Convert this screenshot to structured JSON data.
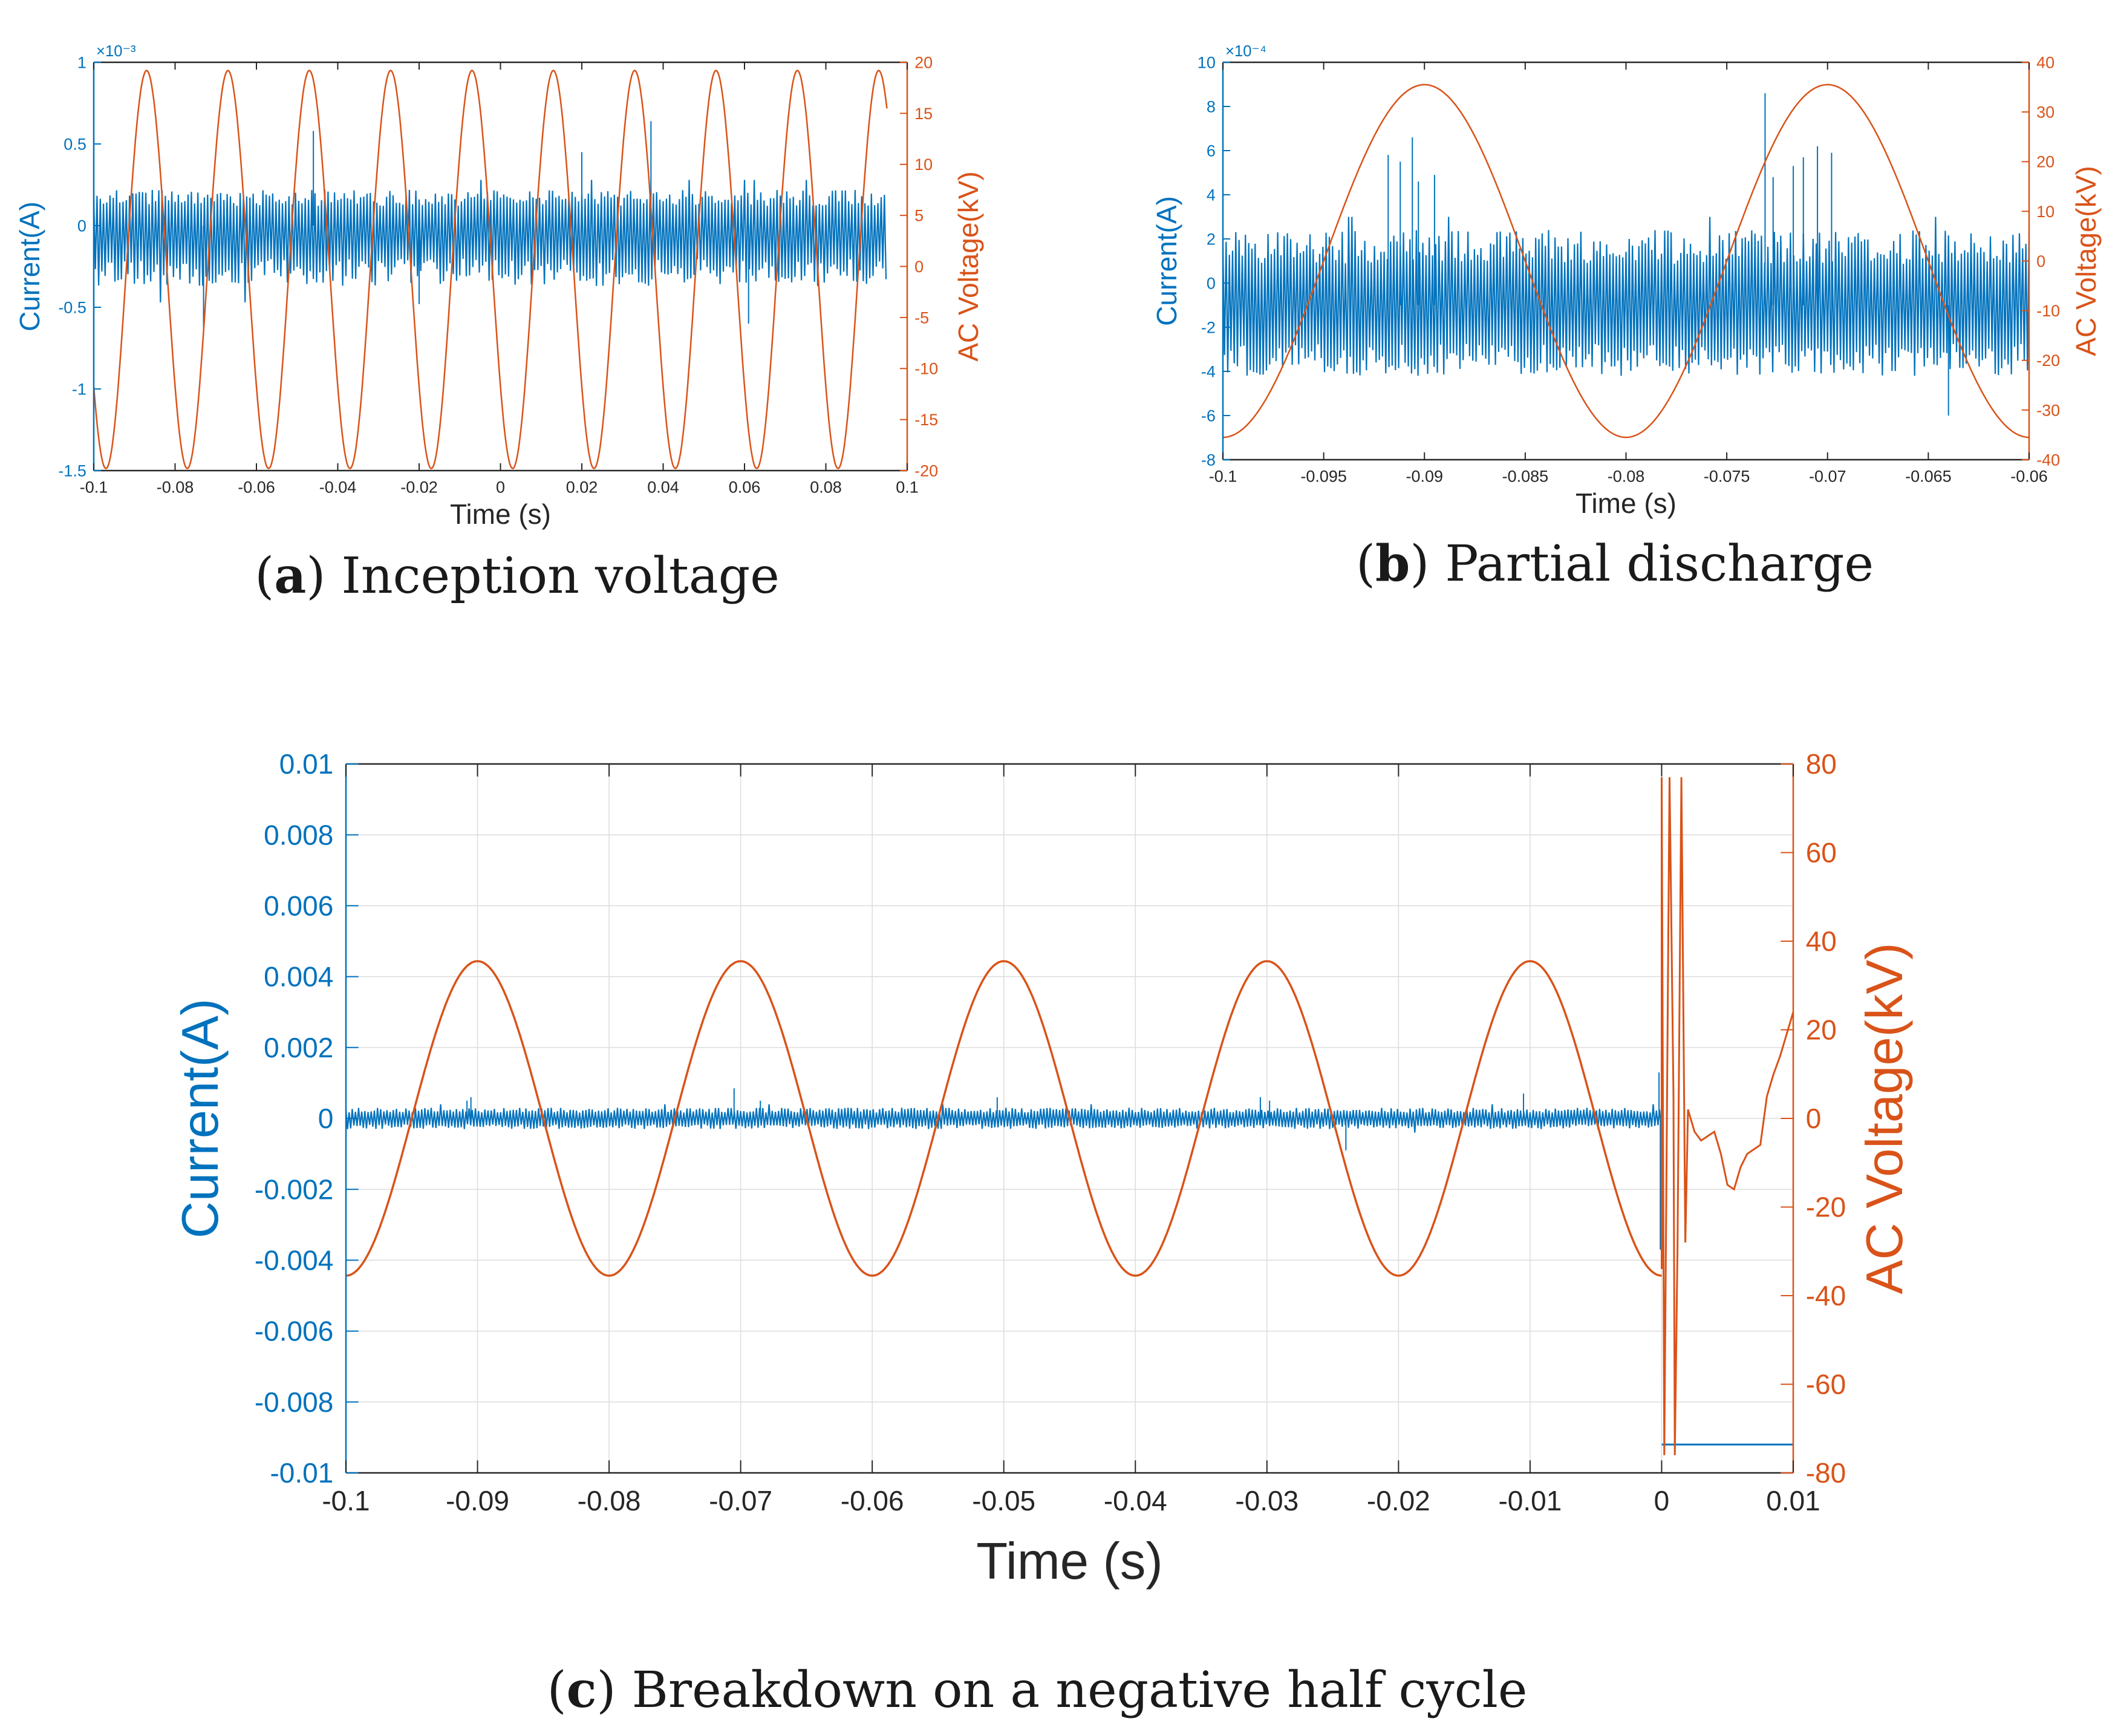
{
  "figure": {
    "captions": [
      {
        "letter": "a",
        "text": "Inception voltage"
      },
      {
        "letter": "b",
        "text": "Partial discharge"
      },
      {
        "letter": "c",
        "text": "Breakdown on a negative half cycle"
      }
    ]
  },
  "colors": {
    "current": "#0072BD",
    "voltage": "#D95319",
    "axis": "#262626",
    "grid": "#DCDCDC"
  },
  "chart_data": [
    {
      "id": "a",
      "type": "line",
      "title": "Inception voltage",
      "xlabel": "Time (s)",
      "ylabel_left": "Current(A)",
      "ylabel_right": "AC Voltage(kV)",
      "left_exponent": "×10⁻³",
      "grid": false,
      "xlim": [
        -0.1,
        0.1
      ],
      "ylim_left": [
        -1.5,
        1
      ],
      "ylim_right": [
        -20,
        20
      ],
      "xticks": [
        -0.1,
        -0.08,
        -0.06,
        -0.04,
        -0.02,
        0,
        0.02,
        0.04,
        0.06,
        0.08,
        0.1
      ],
      "xtick_labels": [
        "-0.1",
        "-0.08",
        "-0.06",
        "-0.04",
        "-0.02",
        "0",
        "0.02",
        "0.04",
        "0.06",
        "0.08",
        "0.1"
      ],
      "yticks_left": [
        -1.5,
        -1,
        -0.5,
        0,
        0.5,
        1
      ],
      "ytick_labels_left": [
        "-1.5",
        "-1",
        "-0.5",
        "0",
        "0.5",
        "1"
      ],
      "yticks_right": [
        -20,
        -15,
        -10,
        -5,
        0,
        5,
        10,
        15,
        20
      ],
      "ytick_labels_right": [
        "-20",
        "-15",
        "-10",
        "-5",
        "0",
        "5",
        "10",
        "15",
        "20"
      ],
      "series": [
        {
          "name": "Current(A)",
          "axis": "left",
          "kind": "noise",
          "x_range": [
            -0.1,
            0.095
          ],
          "mean": 0.0,
          "envelope": [
            -0.37,
            0.22
          ],
          "outer_spikes": [
            -0.47,
            0.28
          ],
          "spikes": [
            [
              -0.046,
              0.58
            ],
            [
              -0.073,
              -0.62
            ],
            [
              0.037,
              0.64
            ],
            [
              0.061,
              -0.6
            ],
            [
              0.02,
              0.45
            ],
            [
              -0.02,
              -0.48
            ]
          ]
        },
        {
          "name": "AC Voltage(kV)",
          "axis": "right",
          "kind": "sine",
          "x_range": [
            -0.1,
            0.095
          ],
          "amplitude": 19.5,
          "frequency_hz": 50,
          "peak_time": -0.087,
          "offset": -0.3
        }
      ]
    },
    {
      "id": "b",
      "type": "line",
      "title": "Partial discharge",
      "xlabel": "Time (s)",
      "ylabel_left": "Current(A)",
      "ylabel_right": "AC Voltage(kV)",
      "left_exponent": "×10⁻⁴",
      "grid": false,
      "xlim": [
        -0.1,
        -0.06
      ],
      "ylim_left": [
        -8,
        10
      ],
      "ylim_right": [
        -40,
        40
      ],
      "xticks": [
        -0.1,
        -0.095,
        -0.09,
        -0.085,
        -0.08,
        -0.075,
        -0.07,
        -0.065,
        -0.06
      ],
      "xtick_labels": [
        "-0.1",
        "-0.095",
        "-0.09",
        "-0.085",
        "-0.08",
        "-0.075",
        "-0.07",
        "-0.065",
        "-0.06"
      ],
      "yticks_left": [
        -8,
        -6,
        -4,
        -2,
        0,
        2,
        4,
        6,
        8,
        10
      ],
      "ytick_labels_left": [
        "-8",
        "-6",
        "-4",
        "-2",
        "0",
        "2",
        "4",
        "6",
        "8",
        "10"
      ],
      "yticks_right": [
        -40,
        -30,
        -20,
        -10,
        0,
        10,
        20,
        30,
        40
      ],
      "ytick_labels_right": [
        "-40",
        "-30",
        "-20",
        "-10",
        "0",
        "10",
        "20",
        "30",
        "40"
      ],
      "series": [
        {
          "name": "Current(A)",
          "axis": "left",
          "kind": "noise",
          "x_range": [
            -0.1,
            -0.06
          ],
          "mean": -1.0,
          "envelope": [
            -4.2,
            2.4
          ],
          "outer_spikes": [
            -5.2,
            3.0
          ],
          "spikes": [
            [
              -0.0906,
              6.6
            ],
            [
              -0.0912,
              5.5
            ],
            [
              -0.0918,
              5.8
            ],
            [
              -0.0895,
              4.9
            ],
            [
              -0.0903,
              4.6
            ],
            [
              -0.0731,
              8.6
            ],
            [
              -0.0705,
              6.2
            ],
            [
              -0.0712,
              5.7
            ],
            [
              -0.0698,
              5.9
            ],
            [
              -0.0717,
              5.3
            ],
            [
              -0.0727,
              4.8
            ],
            [
              -0.064,
              -6.0
            ]
          ]
        },
        {
          "name": "AC Voltage(kV)",
          "axis": "right",
          "kind": "sine",
          "x_range": [
            -0.1,
            -0.06
          ],
          "amplitude": 35.5,
          "frequency_hz": 50,
          "peak_time": -0.09,
          "offset": 0
        }
      ]
    },
    {
      "id": "c",
      "type": "line",
      "title": "Breakdown on a negative half cycle",
      "xlabel": "Time (s)",
      "ylabel_left": "Current(A)",
      "ylabel_right": "AC Voltage(kV)",
      "left_exponent": "",
      "grid": true,
      "xlim": [
        -0.1,
        0.01
      ],
      "ylim_left": [
        -0.01,
        0.01
      ],
      "ylim_right": [
        -80,
        80
      ],
      "xticks": [
        -0.1,
        -0.09,
        -0.08,
        -0.07,
        -0.06,
        -0.05,
        -0.04,
        -0.03,
        -0.02,
        -0.01,
        0,
        0.01
      ],
      "xtick_labels": [
        "-0.1",
        "-0.09",
        "-0.08",
        "-0.07",
        "-0.06",
        "-0.05",
        "-0.04",
        "-0.03",
        "-0.02",
        "-0.01",
        "0",
        "0.01"
      ],
      "yticks_left": [
        -0.01,
        -0.008,
        -0.006,
        -0.004,
        -0.002,
        0,
        0.002,
        0.004,
        0.006,
        0.008,
        0.01
      ],
      "ytick_labels_left": [
        "-0.01",
        "-0.008",
        "-0.006",
        "-0.004",
        "-0.002",
        "0",
        "0.002",
        "0.004",
        "0.006",
        "0.008",
        "0.01"
      ],
      "yticks_right": [
        -80,
        -60,
        -40,
        -20,
        0,
        20,
        40,
        60,
        80
      ],
      "ytick_labels_right": [
        "-80",
        "-60",
        "-40",
        "-20",
        "0",
        "20",
        "40",
        "60",
        "80"
      ],
      "series": [
        {
          "name": "Current(A)",
          "axis": "left",
          "kind": "noise",
          "x_range": [
            -0.1,
            0.0
          ],
          "mean": 0.0,
          "envelope": [
            -0.0003,
            0.0003
          ],
          "outer_spikes": [
            -0.0004,
            0.0004
          ],
          "spikes": [
            [
              -0.0905,
              0.0006
            ],
            [
              -0.0908,
              0.0005
            ],
            [
              -0.0705,
              0.00085
            ],
            [
              -0.0685,
              0.0005
            ],
            [
              -0.0505,
              0.0006
            ],
            [
              -0.0305,
              0.0006
            ],
            [
              -0.0298,
              0.0005
            ],
            [
              -0.0105,
              0.0007
            ],
            [
              -0.024,
              -0.0009
            ],
            [
              -0.0002,
              0.0013
            ],
            [
              -0.0001,
              -0.0037
            ]
          ]
        },
        {
          "name": "Current after breakdown",
          "axis": "left",
          "kind": "line",
          "points": [
            [
              0.0,
              -0.0092
            ],
            [
              0.01,
              -0.0092
            ]
          ]
        },
        {
          "name": "AC Voltage(kV)",
          "axis": "right",
          "kind": "sine",
          "x_range": [
            -0.1,
            0.0
          ],
          "amplitude": 35.5,
          "frequency_hz": 50,
          "peak_time": -0.09,
          "offset": 0
        },
        {
          "name": "AC Voltage after breakdown",
          "axis": "right",
          "kind": "line",
          "points": [
            [
              0.0,
              -34
            ],
            [
              0.0,
              77
            ],
            [
              0.0002,
              -76
            ],
            [
              0.0006,
              77
            ],
            [
              0.0009,
              5
            ],
            [
              0.001,
              -76
            ],
            [
              0.0012,
              -30
            ],
            [
              0.0015,
              77
            ],
            [
              0.0018,
              -28
            ],
            [
              0.002,
              2
            ],
            [
              0.0025,
              -3
            ],
            [
              0.003,
              -5
            ],
            [
              0.0035,
              -4
            ],
            [
              0.004,
              -3
            ],
            [
              0.0045,
              -8
            ],
            [
              0.005,
              -15
            ],
            [
              0.0055,
              -16
            ],
            [
              0.006,
              -11
            ],
            [
              0.0065,
              -8
            ],
            [
              0.007,
              -7
            ],
            [
              0.0075,
              -6
            ],
            [
              0.008,
              5
            ],
            [
              0.0085,
              10
            ],
            [
              0.009,
              14
            ],
            [
              0.0095,
              19
            ],
            [
              0.01,
              24
            ]
          ]
        }
      ]
    }
  ]
}
